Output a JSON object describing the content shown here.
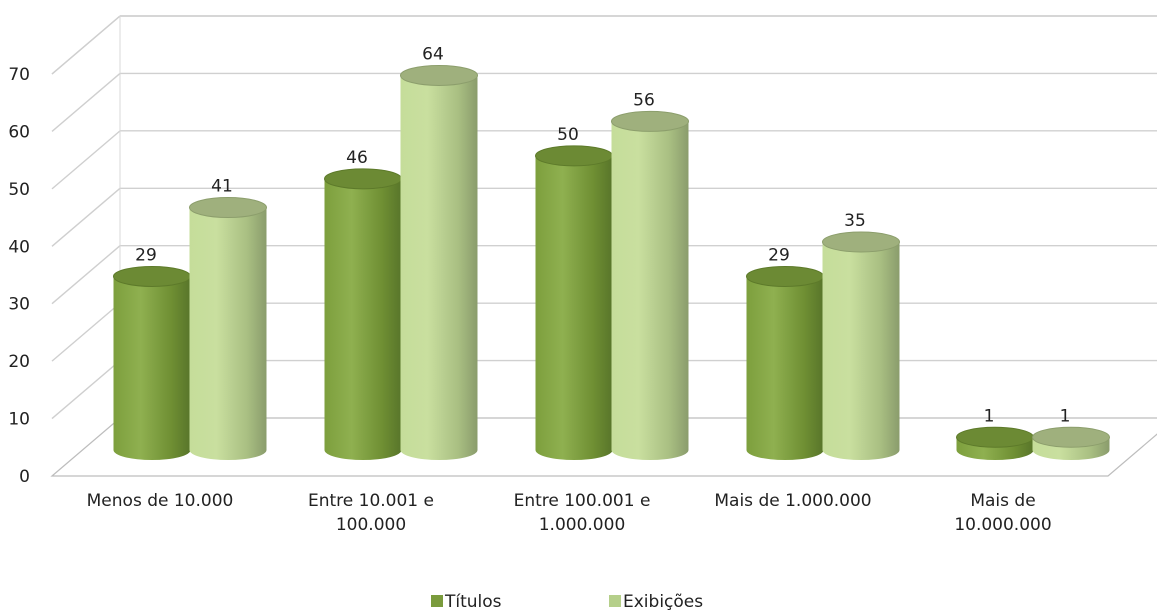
{
  "chart_data": {
    "type": "bar",
    "title": "",
    "xlabel": "",
    "ylabel": "",
    "ylim": [
      0,
      70
    ],
    "y_ticks": [
      0,
      10,
      20,
      30,
      40,
      50,
      60,
      70
    ],
    "grid": true,
    "legend_position": "bottom",
    "style": "3d-cylinder",
    "categories": [
      [
        "Menos de 10.000"
      ],
      [
        "Entre 10.001 e",
        "100.000"
      ],
      [
        "Entre 100.001 e",
        "1.000.000"
      ],
      [
        "Mais de 1.000.000"
      ],
      [
        "Mais de",
        "10.000.000"
      ]
    ],
    "series": [
      {
        "name": "Títulos",
        "color": "#7a9b3c",
        "values": [
          29,
          46,
          50,
          29,
          1
        ]
      },
      {
        "name": "Exibições",
        "color": "#b5cf8a",
        "values": [
          41,
          64,
          56,
          35,
          1
        ]
      }
    ]
  }
}
